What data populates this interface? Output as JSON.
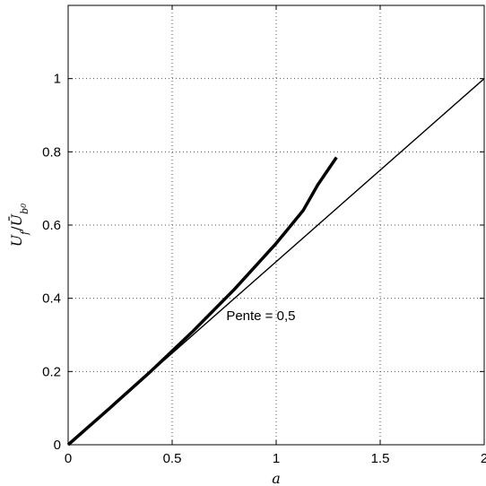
{
  "chart_data": {
    "type": "line",
    "xlabel": "a",
    "ylabel": "U_f / Ū_b0",
    "xlim": [
      0,
      2
    ],
    "ylim": [
      0,
      1.2
    ],
    "xticks": [
      "0",
      "0.5",
      "1",
      "1.5",
      "2"
    ],
    "yticks": [
      "0",
      "0.2",
      "0.4",
      "0.6",
      "0.8",
      "1"
    ],
    "xtick_values": [
      0,
      0.5,
      1,
      1.5,
      2
    ],
    "ytick_values": [
      0,
      0.2,
      0.4,
      0.6,
      0.8,
      1
    ],
    "grid": true,
    "series": [
      {
        "style": "thick",
        "x": [
          0,
          0.2,
          0.4,
          0.6,
          0.8,
          1.0,
          1.13,
          1.2,
          1.29
        ],
        "y": [
          0,
          0.1,
          0.202,
          0.31,
          0.425,
          0.55,
          0.64,
          0.71,
          0.785
        ]
      },
      {
        "style": "thin",
        "x": [
          0,
          2
        ],
        "y": [
          0,
          1
        ]
      }
    ],
    "annotations": [
      {
        "text": "Pente = 0,5",
        "x": 0.76,
        "y": 0.34
      }
    ]
  }
}
